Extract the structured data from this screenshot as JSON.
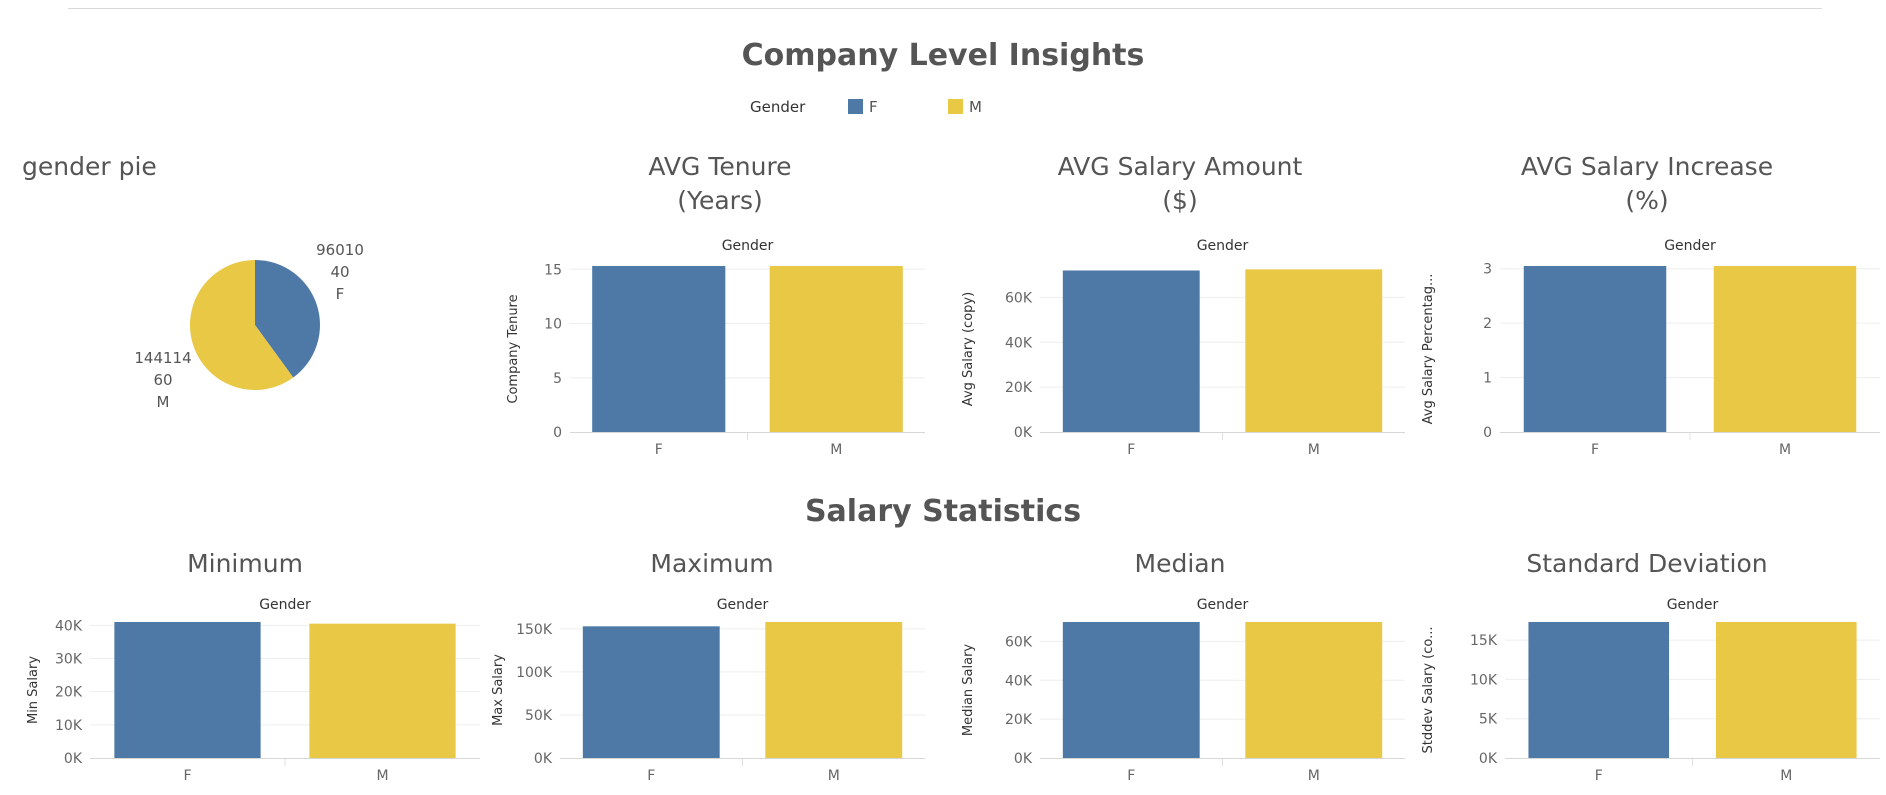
{
  "header": {
    "title": "Company Level Insights"
  },
  "legend": {
    "title": "Gender",
    "items": [
      {
        "label": "F",
        "color": "#4e79a7"
      },
      {
        "label": "M",
        "color": "#e9c845"
      }
    ]
  },
  "sections": {
    "salary_statistics": "Salary Statistics"
  },
  "colors": {
    "F": "#4e79a7",
    "M": "#e9c845"
  },
  "chart_data": [
    {
      "id": "gender-pie",
      "type": "pie",
      "title": "gender pie",
      "slices": [
        {
          "category": "F",
          "value": 96010,
          "percent": 40,
          "label_lines": [
            "96010",
            "40",
            "F"
          ]
        },
        {
          "category": "M",
          "value": 144114,
          "percent": 60,
          "label_lines": [
            "144114",
            "60",
            "M"
          ]
        }
      ]
    },
    {
      "id": "avg-tenure",
      "type": "bar",
      "title": [
        "AVG Tenure",
        "(Years)"
      ],
      "header": "Gender",
      "categories": [
        "F",
        "M"
      ],
      "values": [
        15.3,
        15.3
      ],
      "ylabel": "Company Tenure",
      "ylim": [
        0,
        15.3
      ],
      "yticks": [
        0,
        5,
        10,
        15
      ],
      "ytick_labels": [
        "0",
        "5",
        "10",
        "15"
      ],
      "grid": true
    },
    {
      "id": "avg-salary",
      "type": "bar",
      "title": [
        "AVG Salary Amount",
        "($)"
      ],
      "header": "Gender",
      "categories": [
        "F",
        "M"
      ],
      "values": [
        72000,
        72500
      ],
      "ylabel": "Avg Salary (copy)",
      "ylim": [
        0,
        74000
      ],
      "yticks": [
        0,
        20000,
        40000,
        60000
      ],
      "ytick_labels": [
        "0K",
        "20K",
        "40K",
        "60K"
      ],
      "grid": true
    },
    {
      "id": "avg-salary-increase",
      "type": "bar",
      "title": [
        "AVG Salary Increase",
        "(%)"
      ],
      "header": "Gender",
      "categories": [
        "F",
        "M"
      ],
      "values": [
        3.05,
        3.05
      ],
      "ylabel": "Avg Salary Percentag...",
      "ylim": [
        0,
        3.05
      ],
      "yticks": [
        0,
        1,
        2,
        3
      ],
      "ytick_labels": [
        "0",
        "1",
        "2",
        "3"
      ],
      "grid": true
    },
    {
      "id": "min-salary",
      "type": "bar",
      "title": [
        "Minimum"
      ],
      "header": "Gender",
      "categories": [
        "F",
        "M"
      ],
      "values": [
        41000,
        40500
      ],
      "ylabel": "Min Salary",
      "ylim": [
        0,
        41000
      ],
      "yticks": [
        0,
        10000,
        20000,
        30000,
        40000
      ],
      "ytick_labels": [
        "0K",
        "10K",
        "20K",
        "30K",
        "40K"
      ],
      "grid": true
    },
    {
      "id": "max-salary",
      "type": "bar",
      "title": [
        "Maximum"
      ],
      "header": "Gender",
      "categories": [
        "F",
        "M"
      ],
      "values": [
        153000,
        158000
      ],
      "ylabel": "Max Salary",
      "ylim": [
        0,
        158000
      ],
      "yticks": [
        0,
        50000,
        100000,
        150000
      ],
      "ytick_labels": [
        "0K",
        "50K",
        "100K",
        "150K"
      ],
      "grid": true
    },
    {
      "id": "median-salary",
      "type": "bar",
      "title": [
        "Median"
      ],
      "header": "Gender",
      "categories": [
        "F",
        "M"
      ],
      "values": [
        70000,
        70000
      ],
      "ylabel": "Median Salary",
      "ylim": [
        0,
        70000
      ],
      "yticks": [
        0,
        20000,
        40000,
        60000
      ],
      "ytick_labels": [
        "0K",
        "20K",
        "40K",
        "60K"
      ],
      "grid": true
    },
    {
      "id": "stddev-salary",
      "type": "bar",
      "title": [
        "Standard Deviation"
      ],
      "header": "Gender",
      "categories": [
        "F",
        "M"
      ],
      "values": [
        17300,
        17300
      ],
      "ylabel": "Stddev Salary (co...",
      "ylim": [
        0,
        17300
      ],
      "yticks": [
        0,
        5000,
        10000,
        15000
      ],
      "ytick_labels": [
        "0K",
        "5K",
        "10K",
        "15K"
      ],
      "grid": true
    }
  ]
}
